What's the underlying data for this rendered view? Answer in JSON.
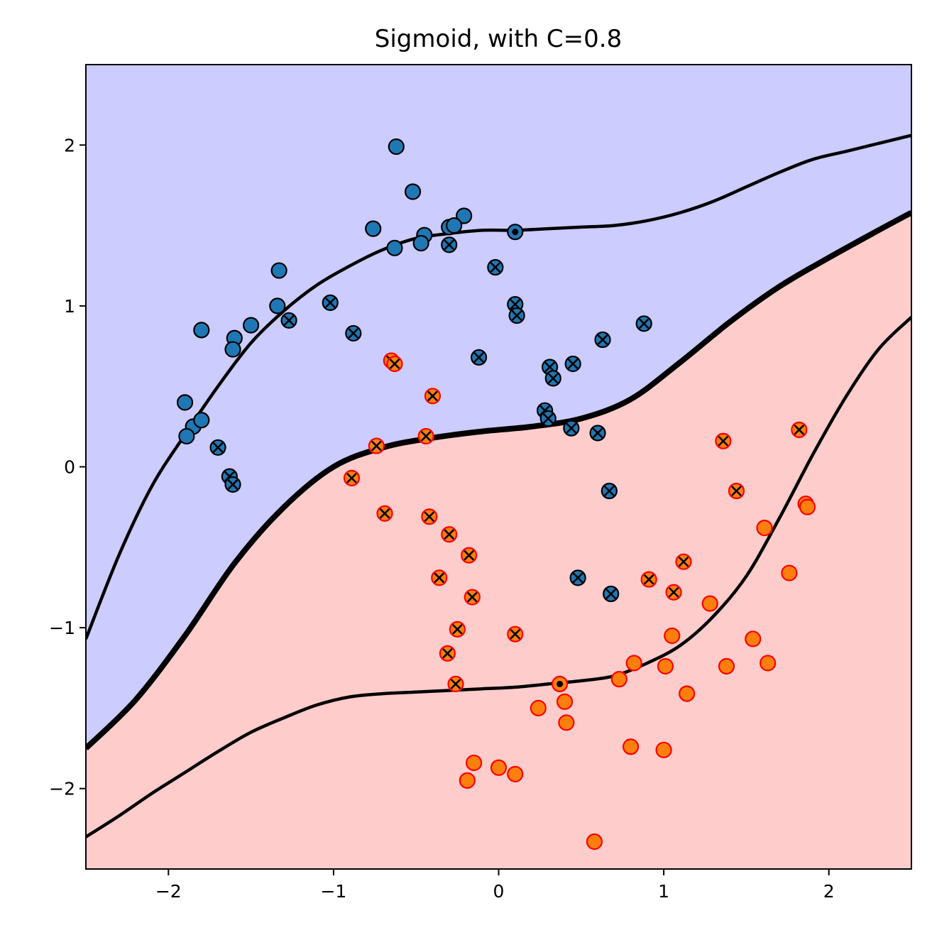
{
  "chart_data": {
    "type": "scatter",
    "title": "Sigmoid, with C=0.8",
    "xlabel": "",
    "ylabel": "",
    "xlim": [
      -2.5,
      2.5
    ],
    "ylim": [
      -2.5,
      2.5
    ],
    "xticks": [
      -2,
      -1,
      0,
      1,
      2
    ],
    "yticks": [
      -2,
      -1,
      0,
      1,
      2
    ],
    "xtick_labels": [
      "−2",
      "−1",
      "0",
      "1",
      "2"
    ],
    "ytick_labels": [
      "−2",
      "−1",
      "0",
      "1",
      "2"
    ],
    "grid": false,
    "region_colors": {
      "upper": "#ccccff",
      "lower": "#ffcccc"
    },
    "boundary_color": "#000000",
    "boundaries": {
      "decision": [
        [
          -2.5,
          -1.75
        ],
        [
          -2.2,
          -1.45
        ],
        [
          -1.9,
          -1.05
        ],
        [
          -1.6,
          -0.6
        ],
        [
          -1.3,
          -0.25
        ],
        [
          -1.0,
          0.0
        ],
        [
          -0.7,
          0.12
        ],
        [
          -0.4,
          0.18
        ],
        [
          -0.1,
          0.22
        ],
        [
          0.2,
          0.25
        ],
        [
          0.5,
          0.3
        ],
        [
          0.8,
          0.42
        ],
        [
          1.1,
          0.65
        ],
        [
          1.4,
          0.9
        ],
        [
          1.7,
          1.12
        ],
        [
          2.0,
          1.3
        ],
        [
          2.3,
          1.47
        ],
        [
          2.5,
          1.58
        ]
      ],
      "margin_upper": [
        [
          -2.5,
          -1.07
        ],
        [
          -2.3,
          -0.55
        ],
        [
          -2.1,
          -0.12
        ],
        [
          -1.9,
          0.2
        ],
        [
          -1.7,
          0.5
        ],
        [
          -1.5,
          0.77
        ],
        [
          -1.3,
          0.97
        ],
        [
          -1.1,
          1.13
        ],
        [
          -0.9,
          1.25
        ],
        [
          -0.7,
          1.35
        ],
        [
          -0.5,
          1.42
        ],
        [
          -0.3,
          1.45
        ],
        [
          -0.1,
          1.47
        ],
        [
          0.1,
          1.47
        ],
        [
          0.3,
          1.48
        ],
        [
          0.5,
          1.49
        ],
        [
          0.7,
          1.5
        ],
        [
          0.9,
          1.53
        ],
        [
          1.1,
          1.58
        ],
        [
          1.3,
          1.65
        ],
        [
          1.5,
          1.74
        ],
        [
          1.7,
          1.83
        ],
        [
          1.9,
          1.91
        ],
        [
          2.1,
          1.96
        ],
        [
          2.3,
          2.01
        ],
        [
          2.5,
          2.06
        ]
      ],
      "margin_lower": [
        [
          -2.5,
          -2.3
        ],
        [
          -2.3,
          -2.17
        ],
        [
          -2.1,
          -2.03
        ],
        [
          -1.9,
          -1.9
        ],
        [
          -1.7,
          -1.77
        ],
        [
          -1.5,
          -1.65
        ],
        [
          -1.3,
          -1.56
        ],
        [
          -1.1,
          -1.48
        ],
        [
          -0.9,
          -1.43
        ],
        [
          -0.7,
          -1.41
        ],
        [
          -0.5,
          -1.4
        ],
        [
          -0.3,
          -1.39
        ],
        [
          -0.1,
          -1.38
        ],
        [
          0.1,
          -1.37
        ],
        [
          0.3,
          -1.35
        ],
        [
          0.5,
          -1.33
        ],
        [
          0.7,
          -1.3
        ],
        [
          0.9,
          -1.22
        ],
        [
          1.1,
          -1.11
        ],
        [
          1.3,
          -0.93
        ],
        [
          1.5,
          -0.68
        ],
        [
          1.7,
          -0.32
        ],
        [
          1.9,
          0.07
        ],
        [
          2.1,
          0.43
        ],
        [
          2.3,
          0.73
        ],
        [
          2.5,
          0.93
        ]
      ]
    },
    "series": [
      {
        "name": "",
        "color": "#1f77b4",
        "edge_color": "#000000",
        "points": [
          [
            -0.62,
            1.99
          ],
          [
            -0.52,
            1.71
          ],
          [
            -0.21,
            1.56
          ],
          [
            -0.76,
            1.48
          ],
          [
            -0.3,
            1.49
          ],
          [
            -0.27,
            1.5
          ],
          [
            -0.45,
            1.44
          ],
          [
            -0.63,
            1.36
          ],
          [
            -0.47,
            1.39
          ],
          [
            -1.33,
            1.22
          ],
          [
            -1.34,
            1.0
          ],
          [
            -1.8,
            0.85
          ],
          [
            -1.6,
            0.8
          ],
          [
            -1.5,
            0.88
          ],
          [
            -1.61,
            0.73
          ],
          [
            -1.9,
            0.4
          ],
          [
            -1.85,
            0.25
          ],
          [
            -1.8,
            0.29
          ],
          [
            -1.89,
            0.19
          ]
        ],
        "support_points": [
          [
            -0.3,
            1.38
          ],
          [
            -0.02,
            1.24
          ],
          [
            0.1,
            1.01
          ],
          [
            0.11,
            0.94
          ],
          [
            -1.02,
            1.02
          ],
          [
            -1.27,
            0.91
          ],
          [
            -0.88,
            0.83
          ],
          [
            0.88,
            0.89
          ],
          [
            0.63,
            0.79
          ],
          [
            -0.12,
            0.68
          ],
          [
            0.31,
            0.62
          ],
          [
            0.33,
            0.55
          ],
          [
            0.45,
            0.64
          ],
          [
            0.28,
            0.35
          ],
          [
            0.3,
            0.3
          ],
          [
            0.44,
            0.24
          ],
          [
            0.6,
            0.21
          ],
          [
            -1.7,
            0.12
          ],
          [
            -1.63,
            -0.06
          ],
          [
            -1.61,
            -0.11
          ],
          [
            0.67,
            -0.15
          ],
          [
            0.48,
            -0.69
          ],
          [
            0.68,
            -0.79
          ]
        ],
        "dot_points": [
          [
            0.1,
            1.46
          ]
        ]
      },
      {
        "name": "",
        "color": "#ff7f0e",
        "edge_color": "#ff0000",
        "points": [
          [
            1.86,
            -0.23
          ],
          [
            1.87,
            -0.25
          ],
          [
            1.61,
            -0.38
          ],
          [
            1.76,
            -0.66
          ],
          [
            1.28,
            -0.85
          ],
          [
            1.05,
            -1.05
          ],
          [
            1.54,
            -1.07
          ],
          [
            0.82,
            -1.22
          ],
          [
            1.01,
            -1.24
          ],
          [
            1.38,
            -1.24
          ],
          [
            1.63,
            -1.22
          ],
          [
            0.73,
            -1.32
          ],
          [
            1.14,
            -1.41
          ],
          [
            0.24,
            -1.5
          ],
          [
            0.4,
            -1.46
          ],
          [
            0.41,
            -1.59
          ],
          [
            0.8,
            -1.74
          ],
          [
            1.0,
            -1.76
          ],
          [
            -0.15,
            -1.84
          ],
          [
            0.0,
            -1.87
          ],
          [
            0.1,
            -1.91
          ],
          [
            -0.19,
            -1.95
          ],
          [
            0.58,
            -2.33
          ]
        ],
        "support_points": [
          [
            -0.65,
            0.66
          ],
          [
            -0.63,
            0.64
          ],
          [
            -0.4,
            0.44
          ],
          [
            -0.74,
            0.13
          ],
          [
            -0.44,
            0.19
          ],
          [
            -0.89,
            -0.07
          ],
          [
            -0.69,
            -0.29
          ],
          [
            -0.42,
            -0.31
          ],
          [
            -0.3,
            -0.42
          ],
          [
            -0.18,
            -0.55
          ],
          [
            -0.36,
            -0.69
          ],
          [
            -0.16,
            -0.81
          ],
          [
            -0.25,
            -1.01
          ],
          [
            0.1,
            -1.04
          ],
          [
            -0.31,
            -1.16
          ],
          [
            -0.26,
            -1.35
          ],
          [
            1.82,
            0.23
          ],
          [
            1.36,
            0.16
          ],
          [
            1.44,
            -0.15
          ],
          [
            1.12,
            -0.59
          ],
          [
            0.91,
            -0.7
          ],
          [
            1.06,
            -0.78
          ]
        ],
        "dot_points": [
          [
            0.37,
            -1.35
          ]
        ]
      }
    ]
  }
}
